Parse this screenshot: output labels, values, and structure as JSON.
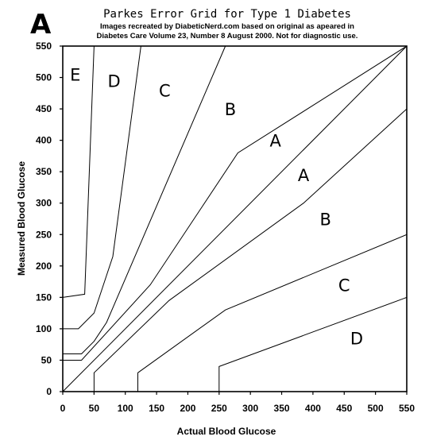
{
  "panel_letter": "A",
  "title": "Parkes Error Grid for Type 1 Diabetes",
  "subtitle_line1": "Images recreated by DiabeticNerd.com based on original as apeared in",
  "subtitle_line2": "Diabetes Care Volume 23, Number 8 August 2000. Not for diagnostic use.",
  "chart_data": {
    "type": "line",
    "title": "Parkes Error Grid for Type 1 Diabetes",
    "xlabel": "Actual Blood Glucose",
    "ylabel": "Measured Blood Glucose",
    "xlim": [
      0,
      550
    ],
    "ylim": [
      0,
      550
    ],
    "xticks": [
      0,
      50,
      100,
      150,
      200,
      250,
      300,
      350,
      400,
      450,
      500,
      550
    ],
    "yticks": [
      0,
      50,
      100,
      150,
      200,
      250,
      300,
      350,
      400,
      450,
      500,
      550
    ],
    "grid": false,
    "boundaries": [
      {
        "region": "E",
        "points": [
          [
            0,
            150
          ],
          [
            35,
            155
          ],
          [
            50,
            550
          ]
        ]
      },
      {
        "region": "D",
        "points": [
          [
            0,
            100
          ],
          [
            25,
            100
          ],
          [
            50,
            125
          ],
          [
            80,
            215
          ],
          [
            125,
            550
          ]
        ]
      },
      {
        "region": "C",
        "points": [
          [
            0,
            60
          ],
          [
            30,
            60
          ],
          [
            50,
            80
          ],
          [
            70,
            110
          ],
          [
            260,
            550
          ]
        ]
      },
      {
        "region": "B",
        "points": [
          [
            0,
            50
          ],
          [
            30,
            50
          ],
          [
            140,
            170
          ],
          [
            280,
            380
          ],
          [
            550,
            550
          ]
        ]
      },
      {
        "region": "B",
        "points": [
          [
            50,
            0
          ],
          [
            50,
            30
          ],
          [
            170,
            145
          ],
          [
            385,
            300
          ],
          [
            550,
            450
          ]
        ]
      },
      {
        "region": "C",
        "points": [
          [
            120,
            0
          ],
          [
            120,
            30
          ],
          [
            260,
            130
          ],
          [
            550,
            250
          ]
        ]
      },
      {
        "region": "D",
        "points": [
          [
            250,
            0
          ],
          [
            250,
            40
          ],
          [
            550,
            150
          ]
        ]
      },
      {
        "region": "identity",
        "points": [
          [
            0,
            0
          ],
          [
            550,
            550
          ]
        ]
      }
    ],
    "zone_labels": [
      {
        "text": "E",
        "x": 20,
        "y": 495
      },
      {
        "text": "D",
        "x": 82,
        "y": 485
      },
      {
        "text": "C",
        "x": 163,
        "y": 470
      },
      {
        "text": "B",
        "x": 268,
        "y": 440
      },
      {
        "text": "A",
        "x": 340,
        "y": 390
      },
      {
        "text": "A",
        "x": 385,
        "y": 335
      },
      {
        "text": "B",
        "x": 420,
        "y": 265
      },
      {
        "text": "C",
        "x": 450,
        "y": 160
      },
      {
        "text": "D",
        "x": 470,
        "y": 75
      }
    ]
  }
}
